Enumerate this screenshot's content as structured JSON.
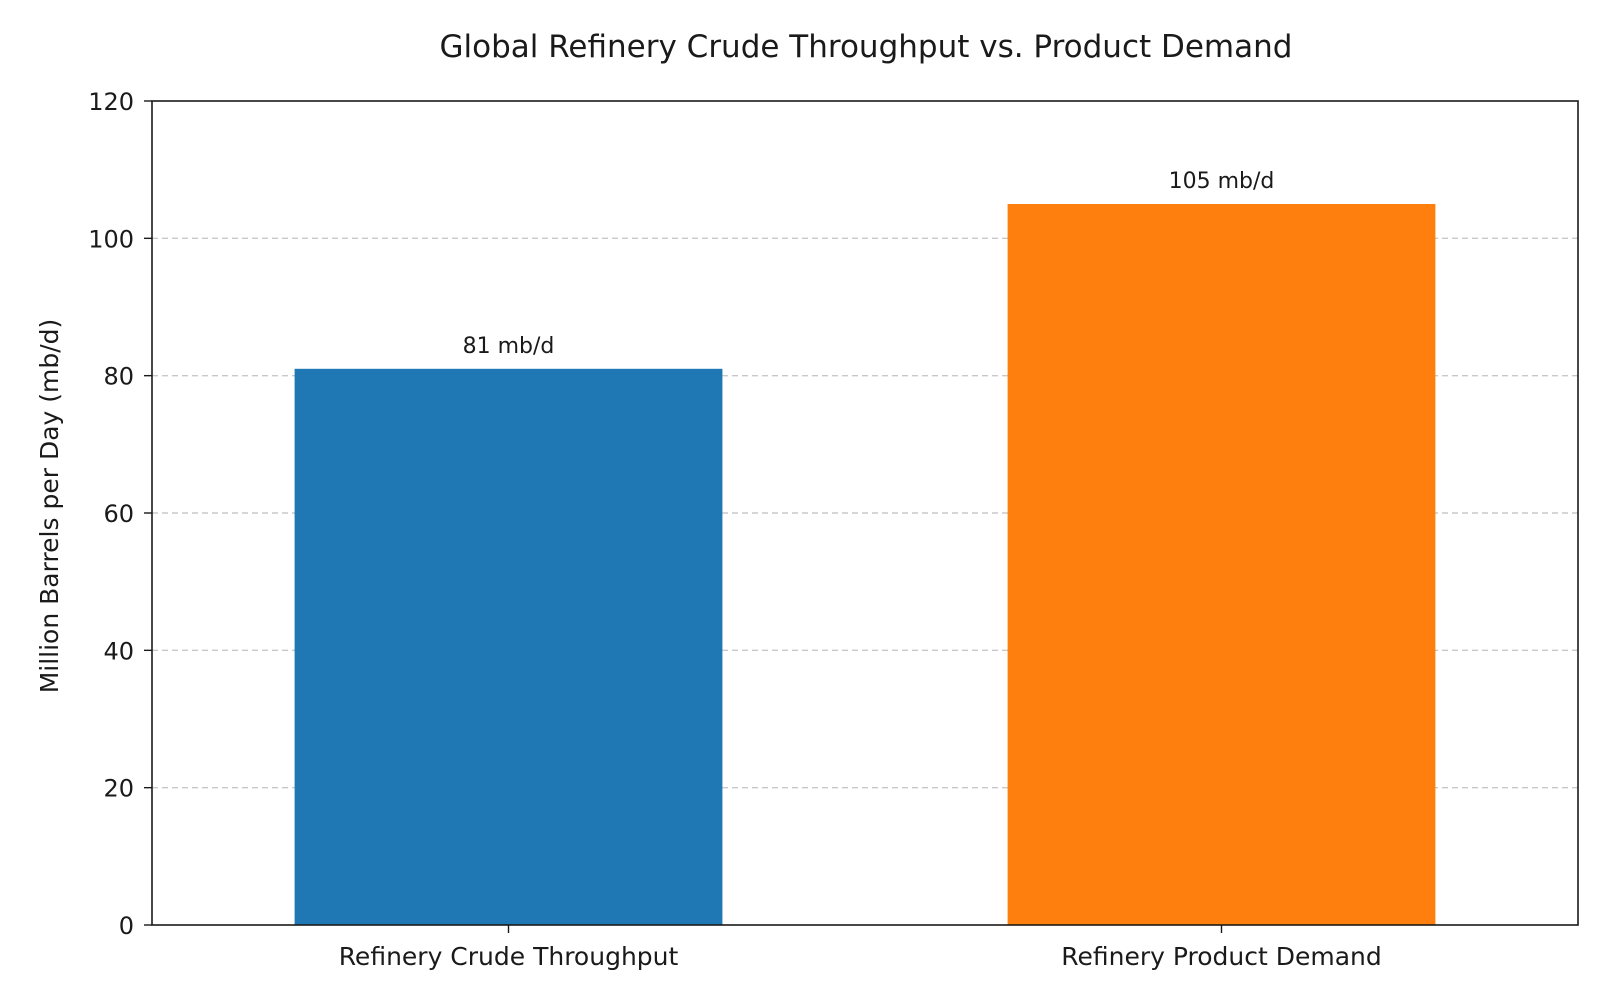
{
  "chart_data": {
    "type": "bar",
    "title": "Global Refinery Crude Throughput vs. Product Demand",
    "xlabel": "",
    "ylabel": "Million Barrels per Day (mb/d)",
    "categories": [
      "Refinery Crude Throughput",
      "Refinery Product Demand"
    ],
    "values": [
      81,
      105
    ],
    "data_labels": [
      "81 mb/d",
      "105 mb/d"
    ],
    "colors": [
      "#1f77b4",
      "#ff7f0e"
    ],
    "ylim": [
      0,
      120
    ],
    "yticks": [
      0,
      20,
      40,
      60,
      80,
      100,
      120
    ],
    "ytick_labels": [
      "0",
      "20",
      "40",
      "60",
      "80",
      "100",
      "120"
    ],
    "grid": "y-dashed",
    "legend": "none"
  }
}
